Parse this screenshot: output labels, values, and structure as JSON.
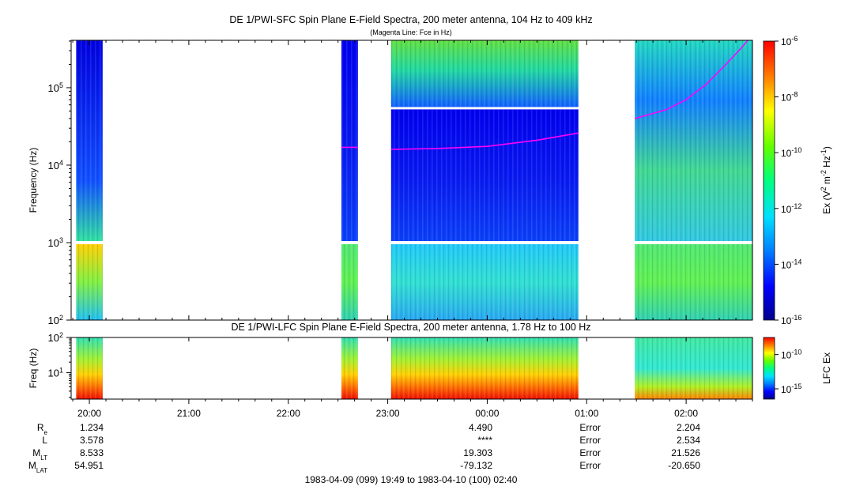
{
  "chart_data": [
    {
      "type": "heatmap",
      "title": "DE 1/PWI-SFC  Spin Plane E-Field Spectra, 200 meter antenna, 104 Hz to 409 kHz",
      "subtitle": "(Magenta Line: Fce in Hz)",
      "ylabel": "Frequency (Hz)",
      "yscale": "log",
      "ylim": [
        100,
        409000
      ],
      "y_ticks": [
        {
          "value": 100,
          "base": "10",
          "exp": "2"
        },
        {
          "value": 1000,
          "base": "10",
          "exp": "3"
        },
        {
          "value": 10000,
          "base": "10",
          "exp": "4"
        },
        {
          "value": 100000,
          "base": "10",
          "exp": "5"
        }
      ],
      "x_range_hours": [
        19.8167,
        26.6667
      ],
      "data_intervals_hours": [
        [
          19.8667,
          20.1333
        ],
        [
          22.5333,
          22.7
        ],
        [
          23.0333,
          24.9167
        ],
        [
          25.4833,
          26.6667
        ]
      ],
      "colorbar": {
        "label_prefix": "Ex (V",
        "label_sup1": "2",
        "label_mid": " m",
        "label_sup2": "-2",
        "label_mid2": " Hz",
        "label_sup3": "-1",
        "label_suffix": ")",
        "ticks": [
          {
            "value": -6,
            "base": "10",
            "exp": "-6"
          },
          {
            "value": -8,
            "base": "10",
            "exp": "-8"
          },
          {
            "value": -10,
            "base": "10",
            "exp": "-10"
          },
          {
            "value": -12,
            "base": "10",
            "exp": "-12"
          },
          {
            "value": -14,
            "base": "10",
            "exp": "-14"
          },
          {
            "value": -16,
            "base": "10",
            "exp": "-16"
          }
        ],
        "range": [
          -16,
          -6
        ]
      },
      "fce_line": {
        "color": "#ff00ff",
        "segments": [
          [
            [
              22.5333,
              17000
            ],
            [
              22.7,
              17000
            ]
          ],
          [
            [
              23.0333,
              16000
            ],
            [
              23.5,
              16400
            ],
            [
              24.0,
              17500
            ],
            [
              24.5,
              21000
            ],
            [
              24.9167,
              26000
            ]
          ],
          [
            [
              25.4833,
              40000
            ],
            [
              25.8,
              52000
            ],
            [
              26.0,
              70000
            ],
            [
              26.2,
              110000
            ],
            [
              26.4,
              200000
            ],
            [
              26.55,
              320000
            ],
            [
              26.62,
              409000
            ]
          ]
        ]
      }
    },
    {
      "type": "heatmap",
      "title": "DE 1/PWI-LFC  Spin Plane E-Field Spectra, 200 meter antenna, 1.78 Hz to 100 Hz",
      "ylabel": "Freq (Hz)",
      "yscale": "log",
      "ylim": [
        1.78,
        100
      ],
      "y_ticks": [
        {
          "value": 10,
          "base": "10",
          "exp": "1"
        },
        {
          "value": 100,
          "base": "10",
          "exp": "2"
        }
      ],
      "data_intervals_hours": [
        [
          19.8667,
          20.1333
        ],
        [
          22.5333,
          22.7
        ],
        [
          23.0333,
          24.9167
        ],
        [
          25.4833,
          26.6667
        ]
      ],
      "colorbar": {
        "label": "LFC Ex",
        "ticks": [
          {
            "value": -10,
            "base": "10",
            "exp": "-10"
          },
          {
            "value": -15,
            "base": "10",
            "exp": "-15"
          }
        ],
        "range": [
          -16.5,
          -7.5
        ]
      }
    }
  ],
  "x_axis": {
    "ticks": [
      {
        "hour": 20,
        "label": "20:00"
      },
      {
        "hour": 21,
        "label": "21:00"
      },
      {
        "hour": 22,
        "label": "22:00"
      },
      {
        "hour": 23,
        "label": "23:00"
      },
      {
        "hour": 24,
        "label": "00:00"
      },
      {
        "hour": 25,
        "label": "01:00"
      },
      {
        "hour": 26,
        "label": "02:00"
      }
    ]
  },
  "ephemeris": {
    "rows": [
      {
        "label": "R",
        "sub": "e",
        "values": [
          "1.234",
          "4.490",
          "Error",
          "2.204"
        ]
      },
      {
        "label": "L",
        "sub": "",
        "values": [
          "3.578",
          "****",
          "Error",
          "2.534"
        ]
      },
      {
        "label": "M",
        "sub": "LT",
        "values": [
          "8.533",
          "19.303",
          "Error",
          "21.526"
        ]
      },
      {
        "label": "M",
        "sub": "LAT",
        "values": [
          "54.951",
          "-79.132",
          "Error",
          "-20.650"
        ]
      }
    ]
  },
  "time_range": "1983-04-09 (099) 19:49 to 1983-04-10 (100) 02:40"
}
